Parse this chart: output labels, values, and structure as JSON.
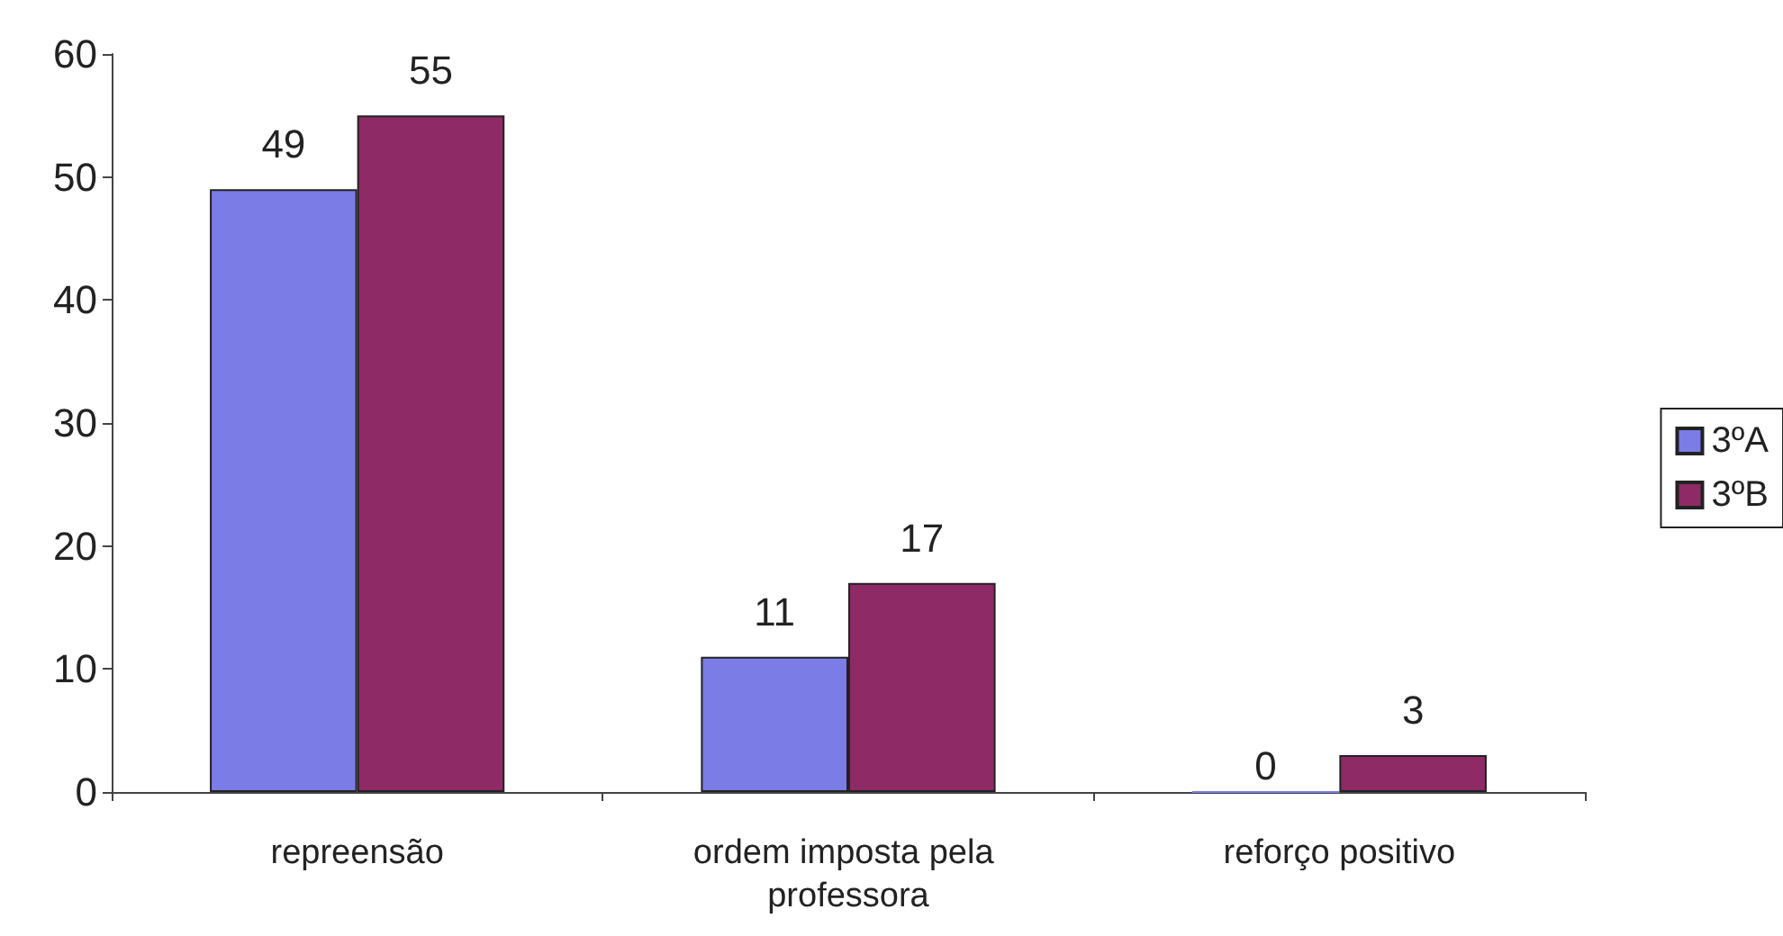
{
  "chart_data": {
    "type": "bar",
    "categories": [
      "repreensão",
      "ordem imposta pela professora",
      "reforço positivo"
    ],
    "series": [
      {
        "name": "3ºA",
        "color": "#7b7ce6",
        "values": [
          49,
          11,
          0
        ]
      },
      {
        "name": "3ºB",
        "color": "#8e2a66",
        "values": [
          55,
          17,
          3
        ]
      }
    ],
    "ylim": [
      0,
      60
    ],
    "yticks": [
      0,
      10,
      20,
      30,
      40,
      50,
      60
    ],
    "grid": false,
    "legend": "right",
    "data_labels": true
  }
}
